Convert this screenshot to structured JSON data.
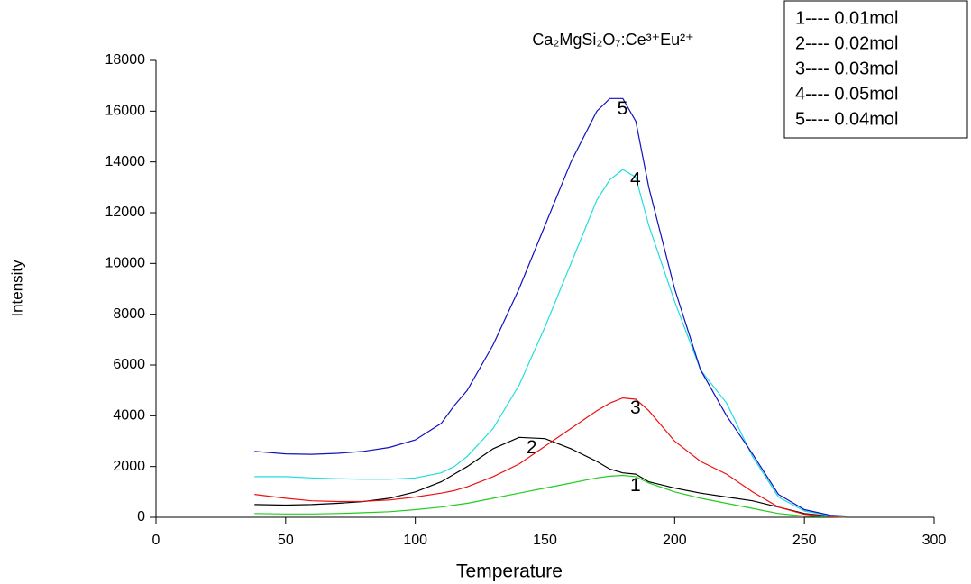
{
  "chart_data": {
    "type": "line",
    "title": "Ca₂MgSi₂O₇:Ce³⁺Eu²⁺",
    "x_label": "Temperature",
    "y_label": "Intensity",
    "x": [
      38,
      50,
      60,
      70,
      80,
      90,
      100,
      110,
      115,
      120,
      130,
      140,
      150,
      160,
      170,
      175,
      180,
      185,
      190,
      200,
      210,
      220,
      230,
      240,
      250,
      260,
      266
    ],
    "series": [
      {
        "name": "1---- 0.01mol",
        "label": "1",
        "color": "#22cc22",
        "values": [
          150,
          130,
          130,
          150,
          180,
          220,
          300,
          400,
          480,
          550,
          750,
          950,
          1150,
          1350,
          1550,
          1620,
          1650,
          1600,
          1350,
          1000,
          750,
          550,
          350,
          150,
          50,
          20,
          10
        ]
      },
      {
        "name": "2---- 0.02mol",
        "label": "2",
        "color": "#000000",
        "values": [
          500,
          480,
          500,
          550,
          620,
          750,
          1000,
          1400,
          1700,
          2000,
          2700,
          3150,
          3100,
          2700,
          2200,
          1900,
          1750,
          1700,
          1400,
          1150,
          950,
          800,
          650,
          400,
          150,
          40,
          30
        ]
      },
      {
        "name": "3---- 0.03mol",
        "label": "3",
        "color": "#ee1111",
        "values": [
          900,
          750,
          650,
          620,
          630,
          680,
          800,
          950,
          1050,
          1200,
          1600,
          2100,
          2800,
          3500,
          4200,
          4500,
          4700,
          4650,
          4200,
          3000,
          2200,
          1700,
          1000,
          400,
          120,
          30,
          20
        ]
      },
      {
        "name": "4---- 0.05mol",
        "label": "4",
        "color": "#22dddd",
        "values": [
          1600,
          1600,
          1550,
          1520,
          1500,
          1500,
          1550,
          1750,
          2000,
          2400,
          3500,
          5200,
          7500,
          10000,
          12500,
          13300,
          13700,
          13400,
          11500,
          8500,
          5800,
          4500,
          2400,
          800,
          250,
          60,
          40
        ]
      },
      {
        "name": "5---- 0.04mol",
        "label": "5",
        "color": "#1111bb",
        "values": [
          2600,
          2500,
          2480,
          2520,
          2600,
          2750,
          3050,
          3700,
          4400,
          5000,
          6800,
          9000,
          11500,
          14000,
          16000,
          16500,
          16500,
          15600,
          13000,
          9000,
          5800,
          4000,
          2500,
          900,
          300,
          80,
          50
        ]
      }
    ],
    "xlim": [
      0,
      300
    ],
    "xticks": [
      0,
      50,
      100,
      150,
      200,
      250,
      300
    ],
    "ylim": [
      0,
      18000
    ],
    "yticks": [
      0,
      2000,
      4000,
      6000,
      8000,
      10000,
      12000,
      14000,
      16000,
      18000
    ],
    "legend": "top-right"
  }
}
